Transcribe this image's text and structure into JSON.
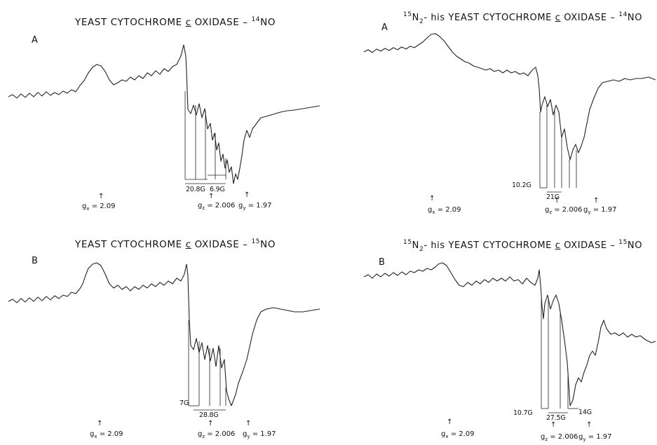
{
  "panels": {
    "top_left": {
      "title_main": "YEAST CYTOCHROME",
      "title_c": "c",
      "title_end": "OXIDASE",
      "isotope_mass": "14",
      "isotope_label": "NO",
      "letter": "A",
      "gx_label": "g",
      "gx_sub": "x",
      "gx_value": "= 2.09",
      "gz_label": "g",
      "gz_sub": "z",
      "gz_value": "= 2.006",
      "gy_label": "g",
      "gy_sub": "y",
      "gy_value": "= 1.97",
      "meas_1": "20.8G",
      "meas_2": "6.9G"
    },
    "bottom_left": {
      "title_main": "YEAST CYTOCHROME",
      "title_c": "c",
      "title_end": "OXIDASE",
      "isotope_mass": "15",
      "isotope_label": "NO",
      "letter": "B",
      "gx_label": "g",
      "gx_sub": "x",
      "gx_value": "= 2.09",
      "gz_label": "g",
      "gz_sub": "z",
      "gz_value": "= 2.006",
      "gy_label": "g",
      "gy_sub": "y",
      "gy_value": "= 1.97",
      "meas_1": "7G",
      "meas_2": "28.8G"
    },
    "top_right": {
      "prefix_mass": "15",
      "prefix_label": "N",
      "prefix_sub": "2",
      "prefix_end": "- his",
      "title_main": "YEAST CYTOCHROME",
      "title_c": "c",
      "title_end": "OXIDASE",
      "isotope_mass": "14",
      "isotope_label": "NO",
      "letter": "A",
      "gx_label": "g",
      "gx_sub": "x",
      "gx_value": "= 2.09",
      "gz_label": "g",
      "gz_sub": "z",
      "gz_value": "= 2.006",
      "gy_label": "g",
      "gy_sub": "y",
      "gy_value": "= 1.97",
      "meas_1": "10.2G",
      "meas_2": "21G"
    },
    "bottom_right": {
      "prefix_mass": "15",
      "prefix_label": "N",
      "prefix_sub": "2",
      "prefix_end": "- his",
      "title_main": "YEAST CYTOCHROME",
      "title_c": "c",
      "title_end": "OXIDASE",
      "isotope_mass": "15",
      "isotope_label": "NO",
      "letter": "B",
      "gx_label": "g",
      "gx_sub": "x",
      "gx_value": "= 2.09",
      "gz_label": "g",
      "gz_sub": "z",
      "gz_value": "= 2.006",
      "gy_label": "g",
      "gy_sub": "y",
      "gy_value": "= 1.97",
      "meas_1": "10.7G",
      "meas_2": "27.5G",
      "meas_3": "14G"
    }
  }
}
